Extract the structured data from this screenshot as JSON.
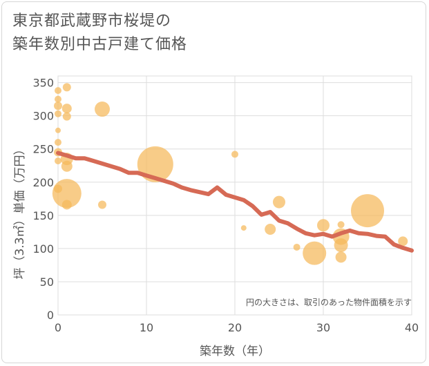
{
  "title": {
    "line1": "東京都武蔵野市桜堤の",
    "line2": "築年数別中古戸建て価格"
  },
  "chart_data": {
    "type": "scatter",
    "xlabel": "築年数（年）",
    "ylabel": "坪（3.3㎡）単価（万円）",
    "xlim": [
      0,
      40
    ],
    "ylim": [
      0,
      360
    ],
    "xticks": [
      0,
      10,
      20,
      30,
      40
    ],
    "yticks": [
      0,
      50,
      100,
      150,
      200,
      250,
      300,
      350
    ],
    "grid": true,
    "note": "円の大きさは、取引のあった物件面積を示す",
    "colors": {
      "bubble": "#f5b85a",
      "trend": "#d66a55",
      "grid": "#dddddd"
    },
    "points": [
      {
        "x": 0,
        "y": 338,
        "s": 5
      },
      {
        "x": 0,
        "y": 325,
        "s": 5
      },
      {
        "x": 0,
        "y": 315,
        "s": 6
      },
      {
        "x": 0,
        "y": 303,
        "s": 5
      },
      {
        "x": 0,
        "y": 278,
        "s": 4
      },
      {
        "x": 0,
        "y": 260,
        "s": 5
      },
      {
        "x": 0,
        "y": 245,
        "s": 6
      },
      {
        "x": 0,
        "y": 232,
        "s": 5
      },
      {
        "x": 0,
        "y": 190,
        "s": 6
      },
      {
        "x": 1,
        "y": 343,
        "s": 6
      },
      {
        "x": 1,
        "y": 311,
        "s": 7
      },
      {
        "x": 1,
        "y": 299,
        "s": 6
      },
      {
        "x": 1,
        "y": 235,
        "s": 9
      },
      {
        "x": 1,
        "y": 224,
        "s": 8
      },
      {
        "x": 1,
        "y": 183,
        "s": 21
      },
      {
        "x": 1,
        "y": 166,
        "s": 7
      },
      {
        "x": 5,
        "y": 310,
        "s": 11
      },
      {
        "x": 5,
        "y": 166,
        "s": 6
      },
      {
        "x": 11,
        "y": 227,
        "s": 26
      },
      {
        "x": 20,
        "y": 242,
        "s": 5
      },
      {
        "x": 21,
        "y": 131,
        "s": 4
      },
      {
        "x": 24,
        "y": 129,
        "s": 8
      },
      {
        "x": 25,
        "y": 170,
        "s": 9
      },
      {
        "x": 27,
        "y": 102,
        "s": 5
      },
      {
        "x": 29,
        "y": 93,
        "s": 17
      },
      {
        "x": 30,
        "y": 135,
        "s": 9
      },
      {
        "x": 32,
        "y": 136,
        "s": 5
      },
      {
        "x": 32,
        "y": 118,
        "s": 12
      },
      {
        "x": 32,
        "y": 105,
        "s": 10
      },
      {
        "x": 32,
        "y": 87,
        "s": 8
      },
      {
        "x": 35,
        "y": 157,
        "s": 24
      },
      {
        "x": 39,
        "y": 111,
        "s": 7
      }
    ],
    "trend": {
      "x": [
        0,
        1,
        2,
        3,
        4,
        5,
        6,
        7,
        8,
        9,
        10,
        11,
        12,
        13,
        14,
        15,
        16,
        17,
        18,
        19,
        20,
        21,
        22,
        23,
        24,
        25,
        26,
        27,
        28,
        29,
        30,
        31,
        32,
        33,
        34,
        35,
        36,
        37,
        38,
        39,
        40
      ],
      "y": [
        244,
        240,
        236,
        236,
        232,
        228,
        224,
        220,
        214,
        214,
        210,
        206,
        202,
        198,
        192,
        188,
        185,
        182,
        192,
        181,
        177,
        173,
        164,
        151,
        155,
        142,
        138,
        130,
        123,
        120,
        122,
        118,
        123,
        127,
        123,
        122,
        119,
        118,
        106,
        101,
        97
      ]
    }
  }
}
